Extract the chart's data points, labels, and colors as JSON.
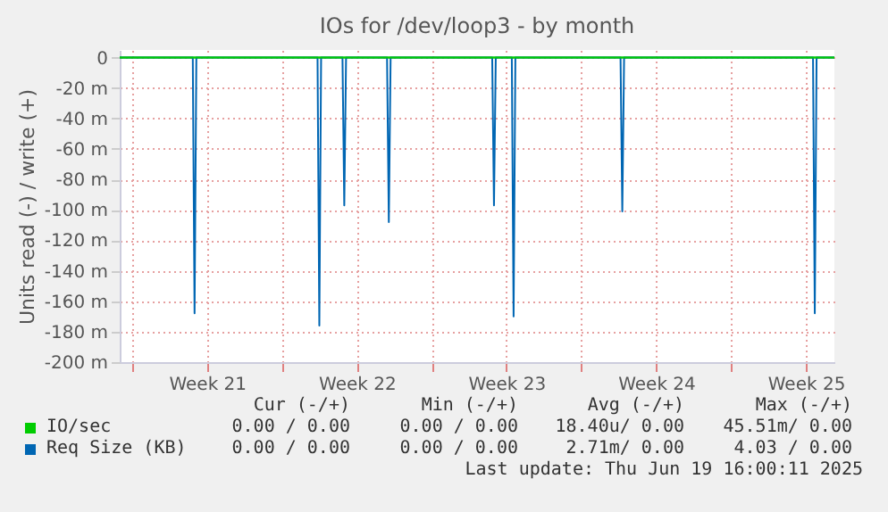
{
  "chart_data": {
    "type": "line",
    "title": "IOs for /dev/loop3 - by month",
    "ylabel": "Units read (-) / write (+)",
    "xlim": [
      "2025-05-17T10:00",
      "2025-06-19T20:00"
    ],
    "xticks": [
      {
        "value": "2025-05-18T00:00",
        "label": null
      },
      {
        "value": "2025-05-21T12:00",
        "label": "Week 21"
      },
      {
        "value": "2025-05-25T00:00",
        "label": null
      },
      {
        "value": "2025-05-28T12:00",
        "label": "Week 22"
      },
      {
        "value": "2025-06-01T00:00",
        "label": null
      },
      {
        "value": "2025-06-04T12:00",
        "label": "Week 23"
      },
      {
        "value": "2025-06-08T00:00",
        "label": null
      },
      {
        "value": "2025-06-11T12:00",
        "label": "Week 24"
      },
      {
        "value": "2025-06-15T00:00",
        "label": null
      },
      {
        "value": "2025-06-18T12:00",
        "label": "Week 25"
      }
    ],
    "ylim": [
      -200,
      5
    ],
    "yticks": [
      0,
      {
        "value": -20,
        "label": "-20 m"
      },
      {
        "value": -40,
        "label": "-40 m"
      },
      {
        "value": -60,
        "label": "-60 m"
      },
      {
        "value": -80,
        "label": "-80 m"
      },
      {
        "value": -100,
        "label": "-100 m"
      },
      {
        "value": -120,
        "label": "-120 m"
      },
      {
        "value": -140,
        "label": "-140 m"
      },
      {
        "value": -160,
        "label": "-160 m"
      },
      {
        "value": -180,
        "label": "-180 m"
      },
      {
        "value": -200,
        "label": "-200 m"
      }
    ],
    "grid": true,
    "legend": "bottom",
    "series": [
      {
        "name": "IO/sec",
        "color": "#00cc00",
        "x": [
          "2025-05-17T10:00",
          "2025-06-19T20:00"
        ],
        "values": [
          0,
          0
        ]
      },
      {
        "name": "Req Size (KB)",
        "color": "#0066b3",
        "x": [
          "2025-05-17T10:00",
          "2025-05-20T20:00",
          "2025-05-20T22:00",
          "2025-05-21T00:00",
          "2025-05-26T16:00",
          "2025-05-26T18:00",
          "2025-05-26T20:00",
          "2025-05-27T20:00",
          "2025-05-27T22:00",
          "2025-05-28T00:00",
          "2025-05-29T22:00",
          "2025-05-30T00:00",
          "2025-05-30T02:00",
          "2025-06-03T20:00",
          "2025-06-03T22:00",
          "2025-06-04T00:00",
          "2025-06-04T18:00",
          "2025-06-04T20:00",
          "2025-06-04T22:00",
          "2025-06-09T20:00",
          "2025-06-09T22:00",
          "2025-06-10T00:00",
          "2025-06-18T20:00",
          "2025-06-18T22:00",
          "2025-06-19T00:00",
          "2025-06-19T20:00"
        ],
        "values": [
          0,
          0,
          -168,
          0,
          0,
          -176,
          0,
          0,
          -97,
          0,
          0,
          -108,
          0,
          0,
          -97,
          0,
          0,
          -170,
          0,
          0,
          -101,
          0,
          0,
          -168,
          0,
          0
        ]
      }
    ],
    "annotations": [
      "Cur (-/+)",
      "Min (-/+)",
      "Avg (-/+)",
      "Max (-/+)",
      "0.00 / 0.00",
      "0.00 / 0.00",
      "18.40u/ 0.00",
      "45.51m/ 0.00",
      "0.00 / 0.00",
      "0.00 / 0.00",
      "2.71m/ 0.00",
      "4.03 / 0.00",
      "Last update: Thu Jun 19 16:00:11 2025"
    ]
  }
}
